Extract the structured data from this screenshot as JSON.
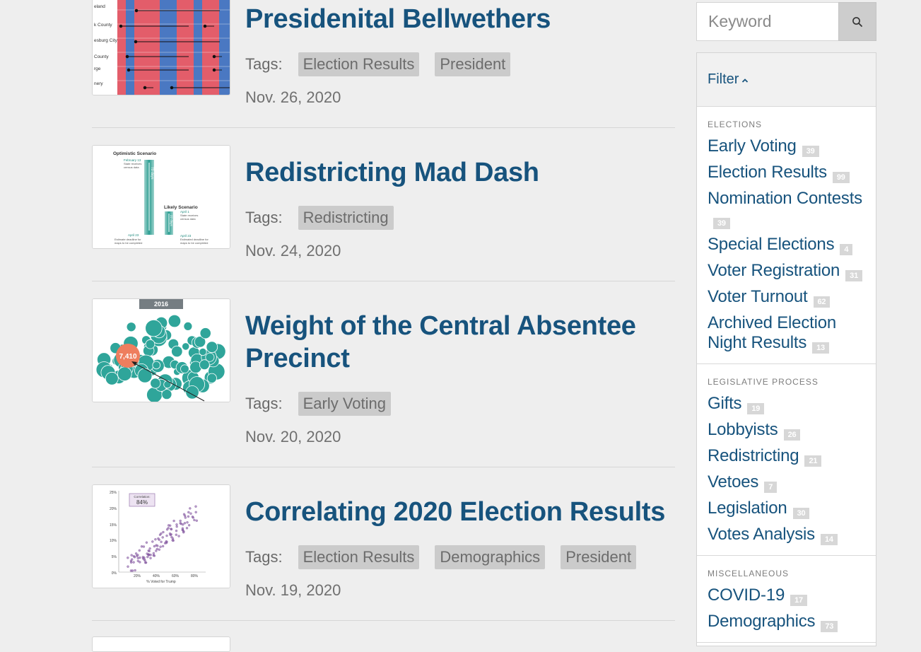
{
  "search": {
    "placeholder": "Keyword",
    "icon": "search-icon"
  },
  "filter": {
    "title": "Filter",
    "sections": [
      {
        "title": "ELECTIONS",
        "items": [
          {
            "label": "Early Voting",
            "count": "39"
          },
          {
            "label": "Election Results",
            "count": "99"
          },
          {
            "label": "Nomination Contests",
            "count": "39"
          },
          {
            "label": "Special Elections",
            "count": "4"
          },
          {
            "label": "Voter Registration",
            "count": "31"
          },
          {
            "label": "Voter Turnout",
            "count": "62"
          },
          {
            "label": "Archived Election Night Results",
            "count": "13"
          }
        ]
      },
      {
        "title": "LEGISLATIVE PROCESS",
        "items": [
          {
            "label": "Gifts",
            "count": "19"
          },
          {
            "label": "Lobbyists",
            "count": "26"
          },
          {
            "label": "Redistricting",
            "count": "21"
          },
          {
            "label": "Vetoes",
            "count": "7"
          },
          {
            "label": "Legislation",
            "count": "30"
          },
          {
            "label": "Votes Analysis",
            "count": "14"
          }
        ]
      },
      {
        "title": "MISCELLANEOUS",
        "items": [
          {
            "label": "COVID-19",
            "count": "17"
          },
          {
            "label": "Demographics",
            "count": "73"
          }
        ]
      }
    ]
  },
  "articles": [
    {
      "title": "Presidenital Bellwethers",
      "tags_label": "Tags:",
      "tags": [
        "Election Results",
        "President"
      ],
      "date": "Nov. 26, 2020",
      "thumb": {
        "rows": [
          "eland",
          "k County",
          "esburg City",
          "County",
          "rge",
          "nery"
        ]
      }
    },
    {
      "title": "Redistricting Mad Dash",
      "tags_label": "Tags:",
      "tags": [
        "Redistricting"
      ],
      "date": "Nov. 24, 2020",
      "thumb": {
        "optimistic": "Optimistic Scenario",
        "likely": "Likely Scenario",
        "opt_days": "70 days",
        "likely_days": "22 days",
        "feb": "February 13",
        "feb_note1": "State receives",
        "feb_note2": "census data",
        "apr1": "April 1",
        "apr1_note1": "State receives",
        "apr1_note2": "census data",
        "apr23a": "April 23",
        "apr23a_note1": "Estimate deadline for",
        "apr23a_note2": "maps to be completed",
        "apr23b": "April 23",
        "apr23b_note1": "Estimated deadline for",
        "apr23b_note2": "maps to be completed"
      }
    },
    {
      "title": "Weight of the Central Absentee Precinct",
      "tags_label": "Tags:",
      "tags": [
        "Early Voting"
      ],
      "date": "Nov. 20, 2020",
      "thumb": {
        "year": "2016",
        "highlight": "7,410"
      }
    },
    {
      "title": "Correlating 2020 Election Results",
      "tags_label": "Tags:",
      "tags": [
        "Election Results",
        "Demographics",
        "President"
      ],
      "date": "Nov. 19, 2020",
      "thumb": {
        "box_label": "Correlation:",
        "box_value": "84%",
        "xlabel": "% Voted for Trump",
        "yticks": [
          "25%",
          "20%",
          "15%",
          "10%",
          "5%",
          "0%"
        ],
        "xticks": [
          "20%",
          "40%",
          "60%",
          "80%"
        ]
      }
    }
  ]
}
